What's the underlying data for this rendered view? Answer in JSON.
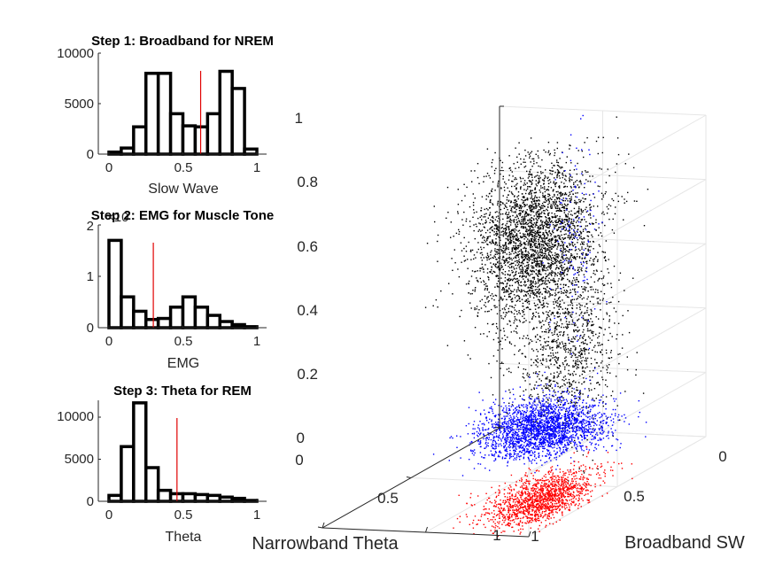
{
  "chart_data": [
    {
      "type": "bar",
      "title": "Step 1: Broadband for NREM",
      "xlabel": "Slow Wave",
      "xlim": [
        0,
        1
      ],
      "ylim": [
        0,
        10000
      ],
      "xticks": [
        "0",
        "0.5",
        "1"
      ],
      "yticks": [
        "0",
        "5000",
        "10000"
      ],
      "bin_edges": [
        0,
        0.0833,
        0.1667,
        0.25,
        0.3333,
        0.4167,
        0.5,
        0.5833,
        0.6667,
        0.75,
        0.8333,
        0.9167,
        1
      ],
      "values": [
        200,
        600,
        2700,
        8000,
        8000,
        4000,
        2800,
        2700,
        4000,
        8200,
        6500,
        500
      ],
      "threshold": 0.62,
      "threshold_color": "#e00000"
    },
    {
      "type": "bar",
      "title": "Step 2: EMG for Muscle Tone",
      "xlabel": "EMG",
      "xlim": [
        0,
        1
      ],
      "ylim": [
        0,
        2
      ],
      "y_exponent_label": "×10",
      "xticks": [
        "0",
        "0.5",
        "1"
      ],
      "yticks": [
        "0",
        "1",
        "2"
      ],
      "bin_edges": [
        0,
        0.0833,
        0.1667,
        0.25,
        0.3333,
        0.4167,
        0.5,
        0.5833,
        0.6667,
        0.75,
        0.8333,
        0.9167,
        1
      ],
      "values": [
        1.7,
        0.6,
        0.32,
        0.16,
        0.18,
        0.4,
        0.6,
        0.4,
        0.24,
        0.12,
        0.06,
        0.02
      ],
      "threshold": 0.3,
      "threshold_color": "#e00000"
    },
    {
      "type": "bar",
      "title": "Step 3: Theta for REM",
      "xlabel": "Theta",
      "xlim": [
        0,
        1
      ],
      "ylim": [
        0,
        12000
      ],
      "xticks": [
        "0",
        "0.5",
        "1"
      ],
      "yticks": [
        "0",
        "5000",
        "10000"
      ],
      "bin_edges": [
        0,
        0.0833,
        0.1667,
        0.25,
        0.3333,
        0.4167,
        0.5,
        0.5833,
        0.6667,
        0.75,
        0.8333,
        0.9167,
        1
      ],
      "values": [
        700,
        6500,
        11700,
        4000,
        1300,
        900,
        900,
        800,
        700,
        500,
        350,
        100
      ],
      "threshold": 0.46,
      "threshold_color": "#e00000"
    },
    {
      "type": "scatter",
      "projection": "3d",
      "xlabel": "Broadband SW",
      "ylabel": "Narrowband Theta",
      "zlabel": "",
      "xlim": [
        0,
        1
      ],
      "ylim": [
        0,
        1
      ],
      "zlim": [
        0,
        1
      ],
      "xticks": [
        "0",
        "0.5",
        "1"
      ],
      "yticks": [
        "0",
        "0.5",
        "1"
      ],
      "zticks": [
        "0",
        "0.2",
        "0.4",
        "0.6",
        "0.8",
        "1"
      ],
      "grid": true,
      "series": [
        {
          "color": "#000000",
          "clusters": [
            {
              "center": [
                0.47,
                0.43,
                0.74
              ],
              "spread": [
                0.12,
                0.12,
                0.12
              ],
              "points": 3200
            },
            {
              "center": [
                0.4,
                0.33,
                0.38
              ],
              "spread": [
                0.09,
                0.09,
                0.13
              ],
              "points": 900
            }
          ]
        },
        {
          "color": "#0000ff",
          "clusters": [
            {
              "center": [
                0.14,
                0.68,
                0.05
              ],
              "spread": [
                0.1,
                0.13,
                0.04
              ],
              "points": 2300
            },
            {
              "center": [
                0.02,
                0.62,
                0.63
              ],
              "spread": [
                0.03,
                0.05,
                0.15
              ],
              "points": 120
            }
          ]
        },
        {
          "color": "#ff0000",
          "clusters": [
            {
              "center": [
                0.76,
                0.15,
                0.04
              ],
              "spread": [
                0.11,
                0.09,
                0.03
              ],
              "points": 1500
            }
          ]
        }
      ]
    }
  ]
}
